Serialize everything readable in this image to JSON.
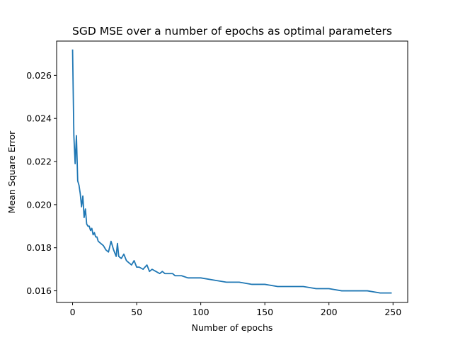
{
  "chart_data": {
    "type": "line",
    "title": "SGD MSE over a number of epochs as optimal parameters",
    "xlabel": "Number of epochs",
    "ylabel": "Mean Square Error",
    "xlim": [
      -12.45,
      261.45
    ],
    "ylim": [
      0.01546,
      0.02759
    ],
    "xticks": [
      0,
      50,
      100,
      150,
      200,
      250
    ],
    "xtick_labels": [
      "0",
      "50",
      "100",
      "150",
      "200",
      "250"
    ],
    "yticks": [
      0.016,
      0.018,
      0.02,
      0.022,
      0.024,
      0.026
    ],
    "ytick_labels": [
      "0.016",
      "0.018",
      "0.020",
      "0.022",
      "0.024",
      "0.026"
    ],
    "grid": false,
    "legend": false,
    "colors": {
      "line": "#1f77b4",
      "axes": "#000000",
      "background": "#ffffff"
    },
    "series": [
      {
        "x": [
          0,
          1,
          2,
          3,
          4,
          5,
          6,
          7,
          8,
          9,
          10,
          11,
          12,
          13,
          14,
          15,
          16,
          17,
          18,
          19,
          20,
          22,
          24,
          26,
          28,
          30,
          32,
          34,
          35,
          36,
          38,
          40,
          42,
          44,
          46,
          48,
          50,
          52,
          55,
          58,
          60,
          62,
          65,
          68,
          70,
          72,
          75,
          78,
          80,
          85,
          90,
          95,
          100,
          110,
          120,
          130,
          140,
          150,
          160,
          170,
          180,
          190,
          200,
          210,
          220,
          230,
          240,
          249
        ],
        "y": [
          0.0272,
          0.0232,
          0.0219,
          0.0232,
          0.0211,
          0.0209,
          0.0205,
          0.0199,
          0.0204,
          0.0194,
          0.0198,
          0.0191,
          0.019,
          0.019,
          0.0188,
          0.0189,
          0.0186,
          0.0187,
          0.0185,
          0.0185,
          0.0183,
          0.0182,
          0.0181,
          0.0179,
          0.0178,
          0.0183,
          0.0179,
          0.0176,
          0.0182,
          0.0176,
          0.0175,
          0.0177,
          0.0174,
          0.0173,
          0.0172,
          0.0174,
          0.0171,
          0.0171,
          0.017,
          0.0172,
          0.0169,
          0.017,
          0.0169,
          0.0168,
          0.0169,
          0.0168,
          0.0168,
          0.0168,
          0.0167,
          0.0167,
          0.0166,
          0.0166,
          0.0166,
          0.0165,
          0.0164,
          0.0164,
          0.0163,
          0.0163,
          0.0162,
          0.0162,
          0.0162,
          0.0161,
          0.0161,
          0.016,
          0.016,
          0.016,
          0.0159,
          0.0159
        ]
      }
    ]
  }
}
